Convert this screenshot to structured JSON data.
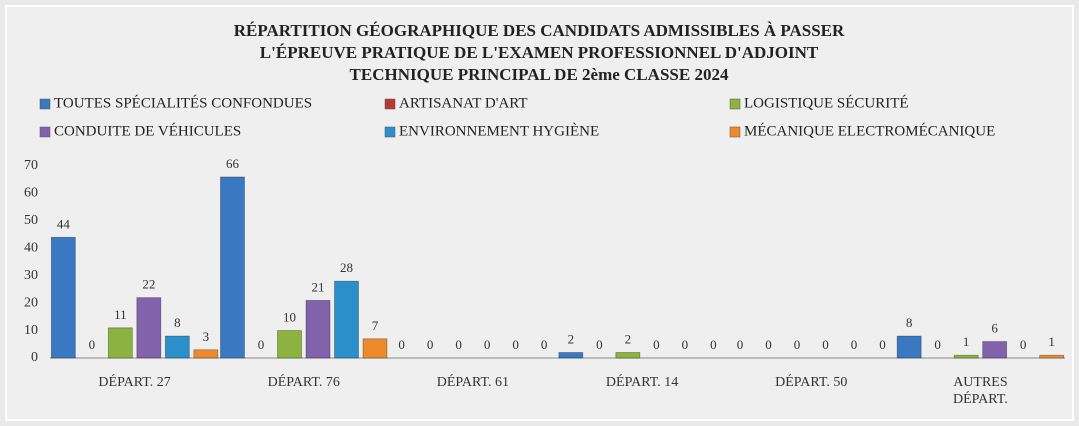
{
  "chart_data": {
    "type": "bar",
    "title": [
      "RÉPARTITION GÉOGRAPHIQUE DES CANDIDATS ADMISSIBLES À  PASSER",
      "L'ÉPREUVE PRATIQUE DE L'EXAMEN PROFESSIONNEL D'ADJOINT",
      "TECHNIQUE PRINCIPAL DE 2ème CLASSE 2024"
    ],
    "categories": [
      "DÉPART. 27",
      "DÉPART. 76",
      "DÉPART. 61",
      "DÉPART. 14",
      "DÉPART. 50",
      "AUTRES DÉPART."
    ],
    "series": [
      {
        "name": "TOUTES SPÉCIALITÉS CONFONDUES",
        "color": "#3a78c2",
        "values": [
          44,
          66,
          0,
          2,
          0,
          8
        ]
      },
      {
        "name": "ARTISANAT D'ART",
        "color": "#b83a33",
        "values": [
          0,
          0,
          0,
          0,
          0,
          0
        ]
      },
      {
        "name": "LOGISTIQUE SÉCURITÉ",
        "color": "#8cb33f",
        "values": [
          11,
          10,
          0,
          2,
          0,
          1
        ]
      },
      {
        "name": "CONDUITE DE VÉHICULES",
        "color": "#8362ac",
        "values": [
          22,
          21,
          0,
          0,
          0,
          6
        ]
      },
      {
        "name": "ENVIRONNEMENT HYGIÈNE",
        "color": "#2b8fc9",
        "values": [
          8,
          28,
          0,
          0,
          0,
          0
        ]
      },
      {
        "name": "MÉCANIQUE ELECTROMÉCANIQUE",
        "color": "#ed8a2e",
        "values": [
          3,
          7,
          0,
          0,
          0,
          1
        ]
      }
    ],
    "ylim": [
      0,
      70
    ],
    "yticks": [
      0,
      10,
      20,
      30,
      40,
      50,
      60,
      70
    ],
    "grid": false
  }
}
